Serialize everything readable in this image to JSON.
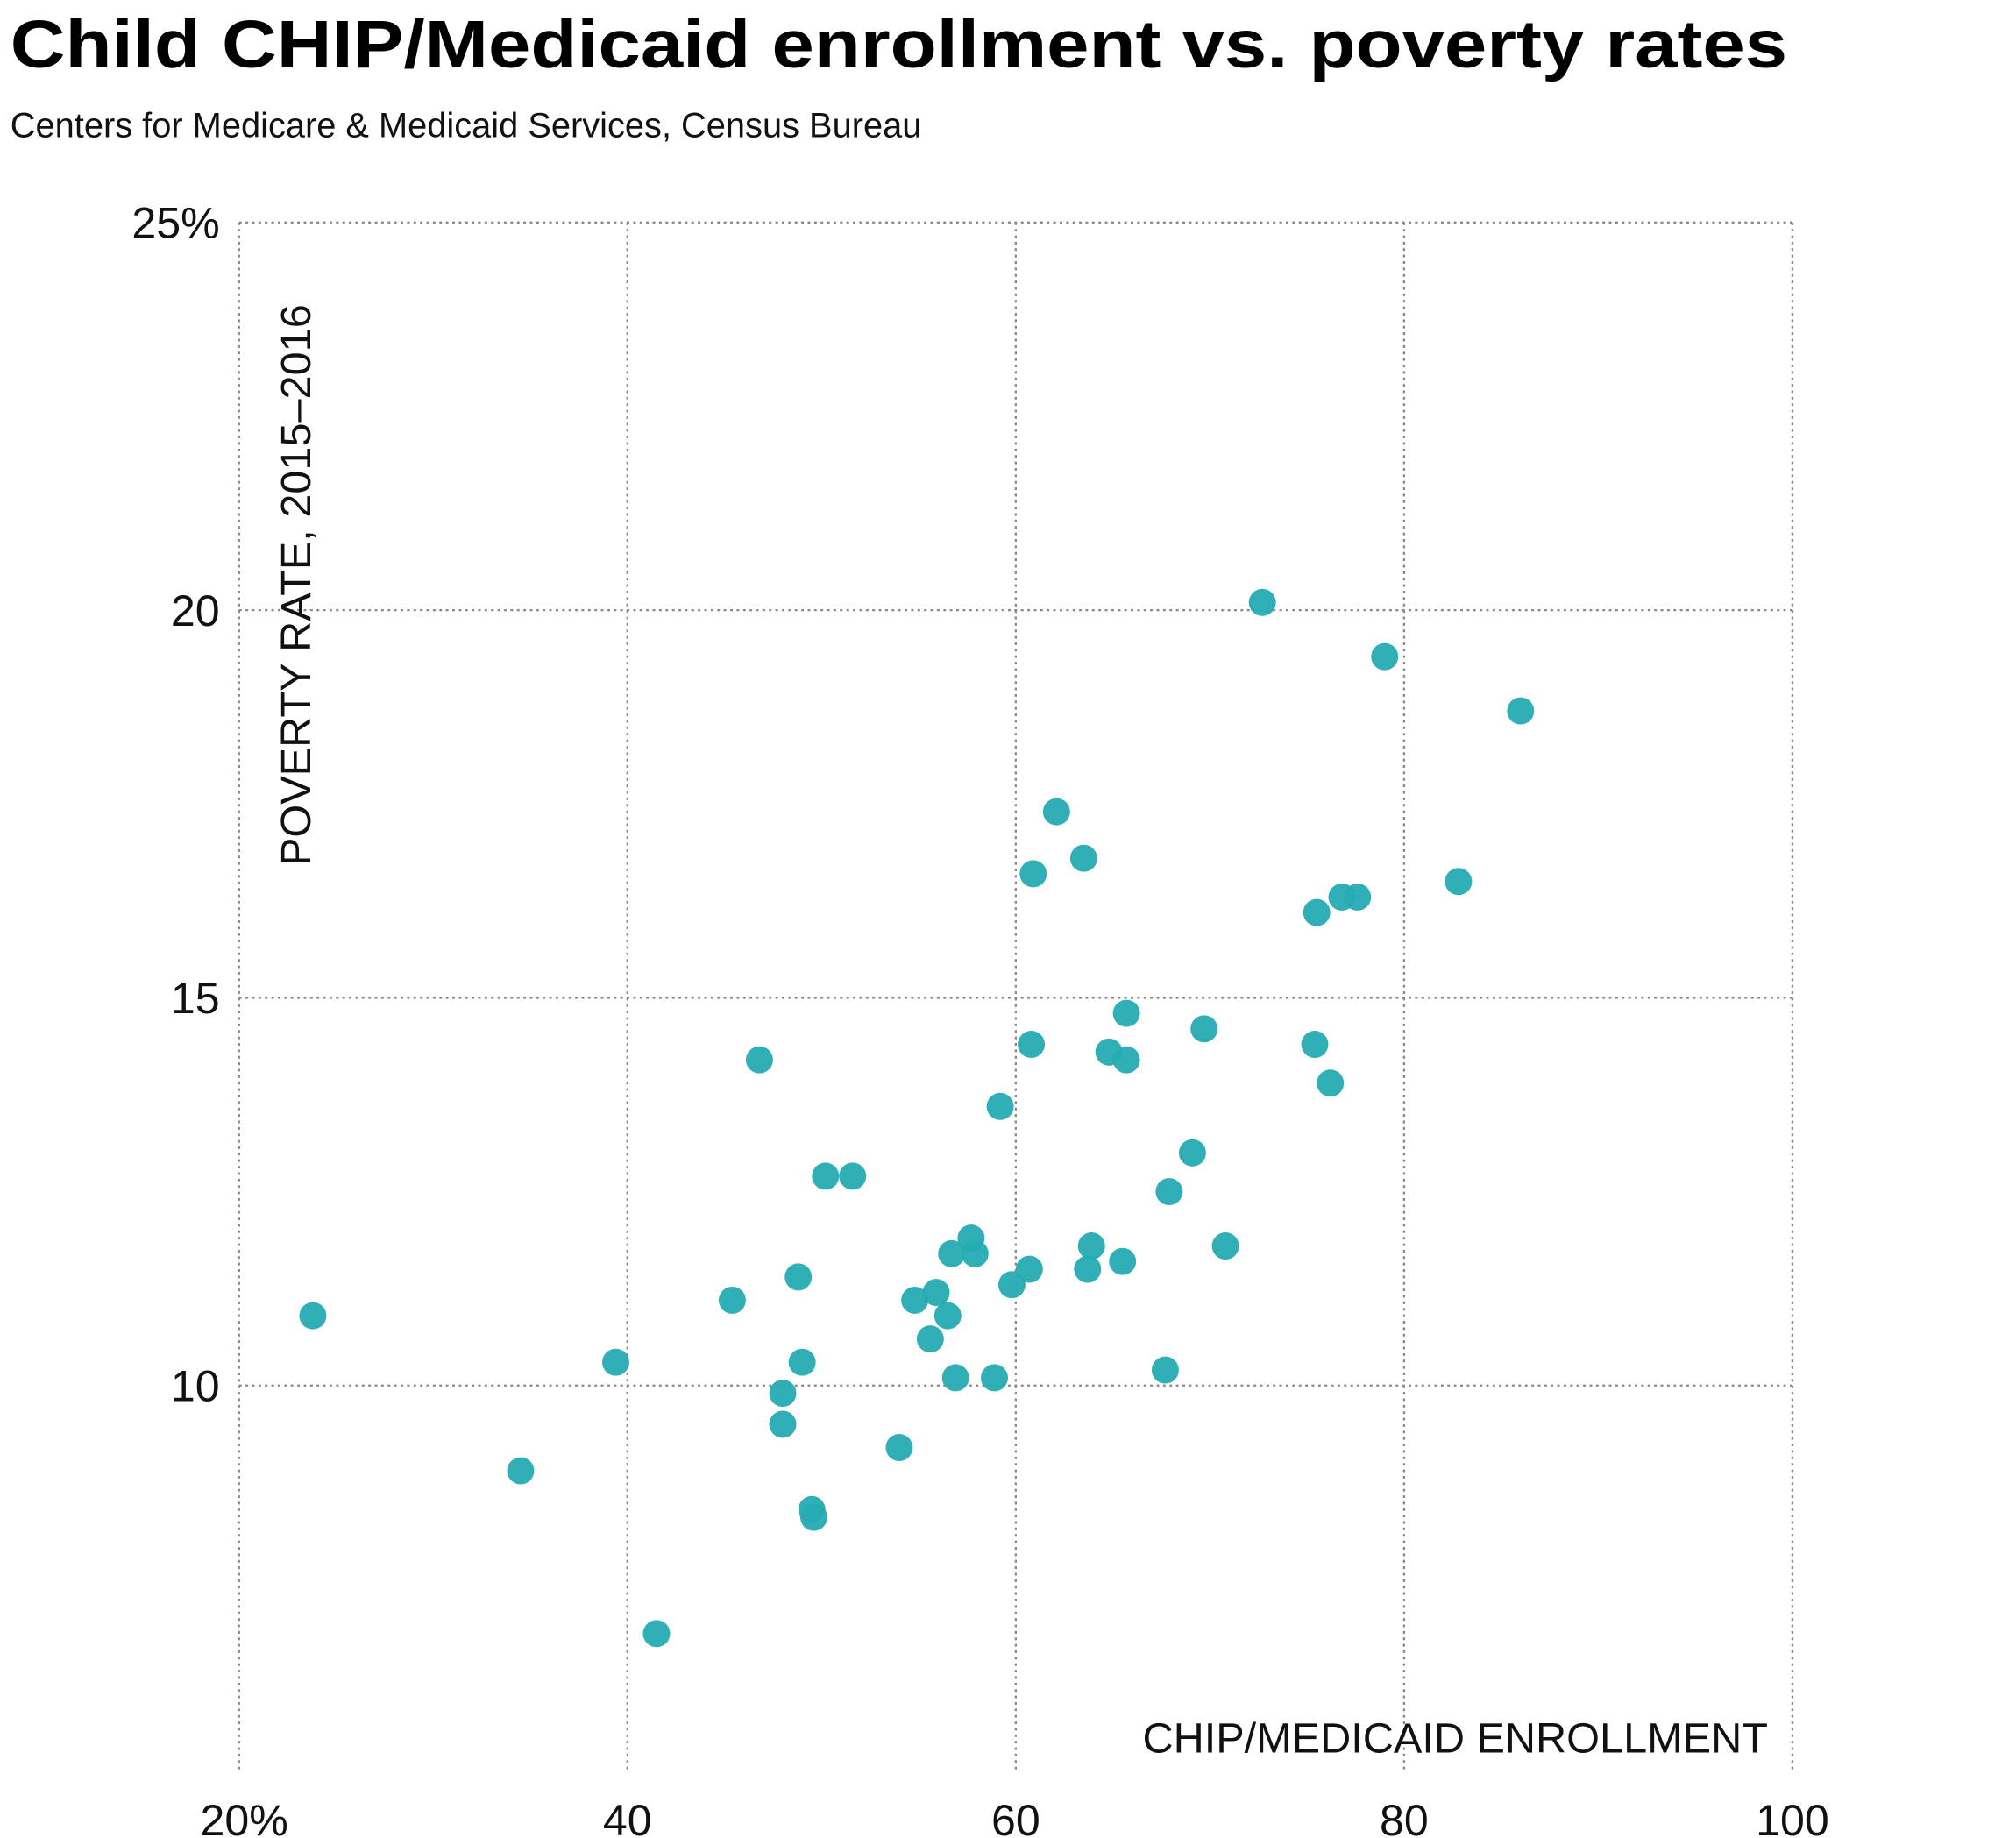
{
  "chart_data": {
    "type": "scatter",
    "title": "Child CHIP/Medicaid enrollment vs. poverty rates",
    "subtitle": "Centers for Medicare & Medicaid Services, Census Bureau",
    "xlabel": "CHIP/MEDICAID ENROLLMENT",
    "ylabel": "POVERTY RATE, 2015–2016",
    "xlim": [
      20,
      100
    ],
    "ylim": [
      5,
      25
    ],
    "x_ticks": [
      {
        "v": 20,
        "label": "20%"
      },
      {
        "v": 40,
        "label": "40"
      },
      {
        "v": 60,
        "label": "60"
      },
      {
        "v": 80,
        "label": "80"
      },
      {
        "v": 100,
        "label": "100"
      }
    ],
    "y_ticks": [
      {
        "v": 25,
        "label": "25%"
      },
      {
        "v": 20,
        "label": "20"
      },
      {
        "v": 15,
        "label": "15"
      },
      {
        "v": 10,
        "label": "10"
      }
    ],
    "grid": true,
    "color": "#26abb2",
    "points": [
      [
        23.8,
        10.9
      ],
      [
        34.5,
        8.9
      ],
      [
        39.4,
        10.3
      ],
      [
        41.5,
        6.8
      ],
      [
        45.4,
        11.1
      ],
      [
        46.8,
        14.2
      ],
      [
        48.0,
        9.5
      ],
      [
        48.0,
        9.9
      ],
      [
        48.8,
        11.4
      ],
      [
        49.0,
        10.3
      ],
      [
        49.5,
        8.4
      ],
      [
        49.6,
        8.3
      ],
      [
        50.2,
        12.7
      ],
      [
        51.6,
        12.7
      ],
      [
        54.0,
        9.2
      ],
      [
        54.8,
        11.1
      ],
      [
        55.6,
        10.6
      ],
      [
        55.9,
        11.2
      ],
      [
        56.5,
        10.9
      ],
      [
        56.7,
        11.7
      ],
      [
        56.9,
        10.1
      ],
      [
        57.7,
        11.9
      ],
      [
        57.9,
        11.7
      ],
      [
        58.9,
        10.1
      ],
      [
        59.2,
        13.6
      ],
      [
        59.8,
        11.3
      ],
      [
        60.7,
        11.5
      ],
      [
        60.8,
        14.4
      ],
      [
        60.9,
        16.6
      ],
      [
        62.1,
        17.4
      ],
      [
        63.5,
        16.8
      ],
      [
        63.7,
        11.5
      ],
      [
        63.9,
        11.8
      ],
      [
        64.8,
        14.3
      ],
      [
        65.5,
        11.6
      ],
      [
        65.7,
        14.8
      ],
      [
        65.7,
        14.2
      ],
      [
        67.7,
        10.2
      ],
      [
        67.9,
        12.5
      ],
      [
        69.1,
        13.0
      ],
      [
        69.7,
        14.6
      ],
      [
        70.8,
        11.8
      ],
      [
        72.7,
        20.1
      ],
      [
        75.4,
        14.4
      ],
      [
        75.5,
        16.1
      ],
      [
        76.2,
        13.9
      ],
      [
        76.8,
        16.3
      ],
      [
        77.6,
        16.3
      ],
      [
        79.0,
        19.4
      ],
      [
        82.8,
        16.5
      ],
      [
        86.0,
        18.7
      ]
    ]
  }
}
